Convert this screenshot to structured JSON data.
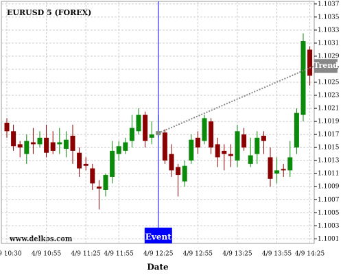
{
  "chart_data": {
    "type": "candlestick",
    "title": "EURUSD 5 (FOREX)",
    "x_label": "Date",
    "watermark": "www.delkos.com",
    "categories": [
      "4/9 10:30",
      null,
      null,
      null,
      null,
      null,
      "4/9 10:55",
      null,
      null,
      null,
      null,
      null,
      "4/9 11:25",
      null,
      null,
      null,
      null,
      "4/9 11:55",
      null,
      null,
      null,
      null,
      null,
      "4/9 12:25",
      null,
      null,
      null,
      null,
      null,
      "4/9 12:55",
      null,
      null,
      null,
      null,
      null,
      "4/9 13:25",
      null,
      null,
      null,
      null,
      null,
      "4/9 13:55",
      null,
      null,
      null,
      null,
      "4/9 14:25"
    ],
    "open": [
      1.10188,
      1.10175,
      1.10155,
      1.1014,
      1.10158,
      1.10155,
      1.10165,
      1.10158,
      1.10155,
      1.10148,
      1.10168,
      1.10142,
      1.10125,
      1.10118,
      1.1009,
      1.10085,
      1.10105,
      1.1014,
      1.10145,
      1.1016,
      1.10175,
      1.102,
      1.10165,
      1.1017,
      1.10173,
      1.1014,
      1.1012,
      1.10098,
      1.1013,
      1.10165,
      1.1016,
      1.1019,
      1.10155,
      1.10145,
      1.1014,
      1.1013,
      1.1017,
      1.10125,
      1.1014,
      1.10168,
      1.10135,
      1.1011,
      1.10117,
      1.10115,
      1.1015,
      1.102,
      1.103
    ],
    "high": [
      1.10195,
      1.10185,
      1.1016,
      1.1017,
      1.1018,
      1.10175,
      1.10185,
      1.10175,
      1.1018,
      1.10175,
      1.10185,
      1.1015,
      1.10135,
      1.10125,
      1.101,
      1.1011,
      1.1016,
      1.1016,
      1.10165,
      1.102,
      1.1021,
      1.10205,
      1.1019,
      1.102,
      1.10178,
      1.10155,
      1.10125,
      1.1013,
      1.1017,
      1.10175,
      1.102,
      1.10195,
      1.10165,
      1.10155,
      1.10155,
      1.10185,
      1.1018,
      1.10165,
      1.10175,
      1.10175,
      1.1015,
      1.10135,
      1.10125,
      1.1016,
      1.1021,
      1.10325,
      1.10305
    ],
    "low": [
      1.10165,
      1.10145,
      1.10135,
      1.10125,
      1.1014,
      1.1015,
      1.10135,
      1.1014,
      1.1014,
      1.10135,
      1.10125,
      1.10105,
      1.10115,
      1.10085,
      1.10055,
      1.10075,
      1.10095,
      1.1013,
      1.1014,
      1.1015,
      1.1017,
      1.1015,
      1.10155,
      1.10165,
      1.10125,
      1.10105,
      1.10075,
      1.1009,
      1.10125,
      1.1014,
      1.10155,
      1.1014,
      1.1012,
      1.10115,
      1.1012,
      1.1012,
      1.10145,
      1.1012,
      1.10125,
      1.1014,
      1.1009,
      1.10095,
      1.10105,
      1.10105,
      1.1014,
      1.1019,
      1.10245
    ],
    "close": [
      1.10175,
      1.10152,
      1.1015,
      1.1016,
      1.10155,
      1.10165,
      1.10142,
      1.10145,
      1.10158,
      1.10162,
      1.10145,
      1.10118,
      1.10122,
      1.10095,
      1.10087,
      1.10108,
      1.10145,
      1.10152,
      1.10158,
      1.1018,
      1.102,
      1.1016,
      1.1017,
      1.10175,
      1.1013,
      1.10115,
      1.10108,
      1.10122,
      1.10162,
      1.1015,
      1.10195,
      1.1015,
      1.10135,
      1.1014,
      1.10137,
      1.10175,
      1.1015,
      1.10138,
      1.10165,
      1.1016,
      1.10102,
      1.10115,
      1.10115,
      1.10135,
      1.10203,
      1.10313,
      1.1026
    ],
    "up_color": "#0b8a0b",
    "down_color": "#8b0000",
    "ylim": [
      1.10003,
      1.10374
    ],
    "yticks": [
      1.1001,
      1.1003,
      1.1005,
      1.1007,
      1.1009,
      1.1011,
      1.1013,
      1.1015,
      1.1017,
      1.1019,
      1.1021,
      1.1023,
      1.1025,
      1.1027,
      1.1029,
      1.1031,
      1.1033,
      1.1035,
      1.1037
    ],
    "grid": true,
    "event": {
      "label": "Event",
      "index": 23,
      "color": "#0000ff"
    },
    "trend": {
      "label": "Trend",
      "index": 23,
      "start": 1.10172,
      "end": 1.10275,
      "color": "#888888"
    }
  }
}
